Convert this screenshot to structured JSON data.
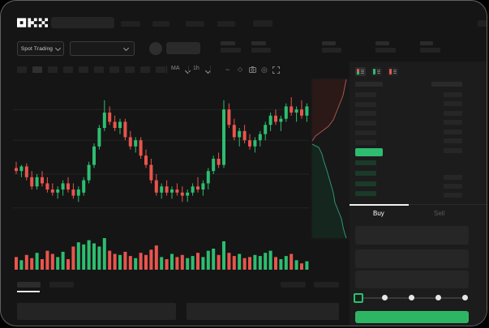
{
  "brand": {
    "name": "OKX"
  },
  "subbar": {
    "market_type": "Spot Trading"
  },
  "chart_toolbar": {
    "indicator_label": "MA",
    "interval_label": "1h",
    "icons": [
      "wave-icon",
      "eraser-icon",
      "camera-icon",
      "target-icon",
      "expand-icon"
    ]
  },
  "orderbook": {
    "mode_icons": [
      "combined-book-icon",
      "bids-book-icon",
      "asks-book-icon"
    ],
    "buy_tab": "Buy",
    "sell_tab": "Sell",
    "amount_slider": {
      "positions_pct": [
        0,
        25,
        50,
        75,
        100
      ],
      "selected_pct": 0
    }
  },
  "colors": {
    "up": "#2ebd70",
    "down": "#e8554d",
    "accent_button": "#2db564",
    "bg": "#151515",
    "panel": "#1c1c1c",
    "grid": "#242424",
    "depth_ask_fill": "#2a1917",
    "depth_ask_line": "#a8564f",
    "depth_bid_fill": "#14261d",
    "depth_bid_line": "#2f9377"
  },
  "chart_data": {
    "type": "candlestick",
    "title": "",
    "xlabel": "",
    "ylabel": "",
    "ylim": [
      0,
      100
    ],
    "grid": true,
    "gridlines_price": [
      82,
      62,
      40,
      18
    ],
    "candles": [
      [
        44,
        48,
        40,
        42
      ],
      [
        42,
        46,
        38,
        45
      ],
      [
        45,
        47,
        36,
        38
      ],
      [
        38,
        42,
        30,
        32
      ],
      [
        32,
        40,
        30,
        38
      ],
      [
        38,
        42,
        32,
        34
      ],
      [
        34,
        38,
        28,
        30
      ],
      [
        30,
        34,
        26,
        28
      ],
      [
        28,
        32,
        24,
        30
      ],
      [
        30,
        36,
        26,
        34
      ],
      [
        34,
        38,
        28,
        30
      ],
      [
        30,
        34,
        24,
        26
      ],
      [
        26,
        32,
        22,
        30
      ],
      [
        28,
        38,
        26,
        36
      ],
      [
        36,
        48,
        34,
        46
      ],
      [
        46,
        60,
        44,
        58
      ],
      [
        58,
        72,
        56,
        70
      ],
      [
        70,
        88,
        68,
        80
      ],
      [
        80,
        84,
        72,
        74
      ],
      [
        74,
        78,
        68,
        70
      ],
      [
        70,
        76,
        66,
        74
      ],
      [
        74,
        76,
        62,
        64
      ],
      [
        64,
        68,
        56,
        58
      ],
      [
        58,
        64,
        54,
        62
      ],
      [
        62,
        64,
        50,
        52
      ],
      [
        52,
        56,
        44,
        46
      ],
      [
        46,
        50,
        34,
        36
      ],
      [
        36,
        40,
        26,
        28
      ],
      [
        28,
        34,
        24,
        32
      ],
      [
        32,
        36,
        26,
        28
      ],
      [
        28,
        32,
        24,
        30
      ],
      [
        30,
        34,
        26,
        28
      ],
      [
        28,
        32,
        22,
        26
      ],
      [
        26,
        30,
        22,
        28
      ],
      [
        28,
        34,
        26,
        32
      ],
      [
        32,
        38,
        28,
        30
      ],
      [
        30,
        36,
        26,
        34
      ],
      [
        34,
        44,
        30,
        42
      ],
      [
        42,
        52,
        40,
        50
      ],
      [
        50,
        54,
        44,
        46
      ],
      [
        46,
        88,
        44,
        82
      ],
      [
        82,
        86,
        70,
        72
      ],
      [
        72,
        76,
        62,
        64
      ],
      [
        64,
        70,
        58,
        68
      ],
      [
        68,
        72,
        60,
        62
      ],
      [
        62,
        66,
        56,
        58
      ],
      [
        58,
        64,
        54,
        62
      ],
      [
        62,
        68,
        58,
        66
      ],
      [
        66,
        74,
        62,
        72
      ],
      [
        72,
        80,
        68,
        78
      ],
      [
        78,
        82,
        72,
        74
      ],
      [
        74,
        78,
        68,
        76
      ],
      [
        76,
        86,
        74,
        84
      ],
      [
        84,
        90,
        78,
        80
      ],
      [
        80,
        84,
        74,
        82
      ],
      [
        82,
        88,
        76,
        78
      ],
      [
        78,
        86,
        74,
        84
      ]
    ],
    "volume": [
      12,
      9,
      14,
      11,
      16,
      10,
      18,
      15,
      12,
      17,
      10,
      22,
      26,
      24,
      28,
      25,
      22,
      30,
      18,
      15,
      14,
      17,
      13,
      11,
      16,
      14,
      19,
      23,
      12,
      10,
      15,
      12,
      14,
      11,
      13,
      16,
      12,
      18,
      20,
      14,
      27,
      16,
      13,
      15,
      11,
      12,
      14,
      13,
      16,
      18,
      12,
      10,
      13,
      15,
      9,
      6,
      8
    ],
    "depth": {
      "type": "depth",
      "asks_points": [
        [
          44,
          2
        ],
        [
          42,
          12
        ],
        [
          40,
          22
        ],
        [
          36,
          32
        ],
        [
          32,
          42
        ],
        [
          28,
          52
        ],
        [
          22,
          60
        ],
        [
          14,
          66
        ],
        [
          6,
          72
        ],
        [
          2,
          78
        ]
      ],
      "bids_points": [
        [
          2,
          82
        ],
        [
          10,
          86
        ],
        [
          14,
          94
        ],
        [
          16,
          102
        ],
        [
          20,
          114
        ],
        [
          24,
          128
        ],
        [
          28,
          142
        ],
        [
          30,
          154
        ],
        [
          34,
          164
        ],
        [
          38,
          174
        ],
        [
          40,
          184
        ],
        [
          42,
          192
        ],
        [
          44,
          198
        ]
      ]
    }
  }
}
